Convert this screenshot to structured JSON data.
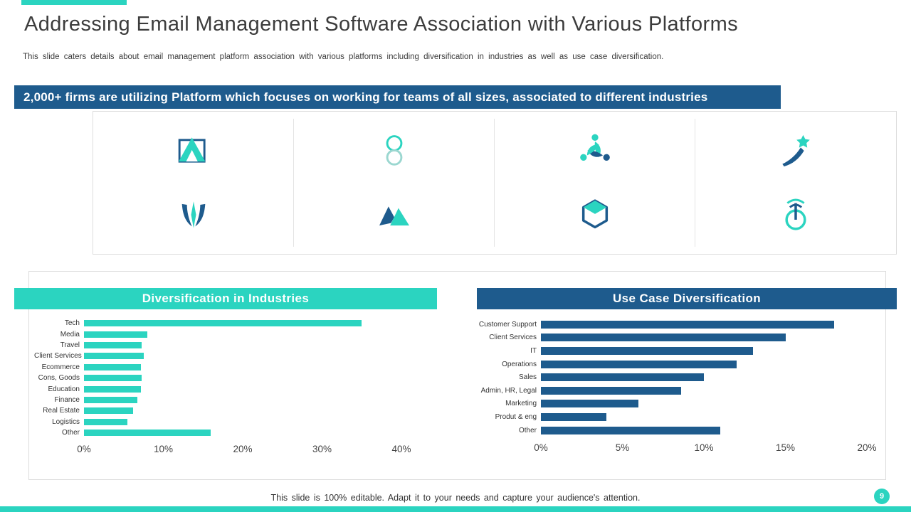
{
  "colors": {
    "teal": "#2BD4C0",
    "blue": "#1E5B8D"
  },
  "header": {
    "title": "Addressing Email Management Software Association with Various Platforms",
    "subtitle": "This slide caters details about email management platform association with various platforms including diversification in industries as well as use case diversification."
  },
  "banner": {
    "text": "2,000+ firms are utilizing Platform which focuses on working for teams of all sizes, associated to different industries"
  },
  "logos": [
    "triangle-square-logo",
    "figure-eight-logo",
    "people-swirl-logo",
    "star-person-logo",
    "wing-flame-logo",
    "mountain-m-logo",
    "hexagon-box-logo",
    "antenna-power-logo"
  ],
  "chart_data": [
    {
      "type": "bar",
      "orientation": "horizontal",
      "title": "Diversification in Industries",
      "categories": [
        "Tech",
        "Media",
        "Travel",
        "Client Services",
        "Ecommerce",
        "Cons, Goods",
        "Education",
        "Finance",
        "Real Estate",
        "Logistics",
        "Other"
      ],
      "values": [
        35,
        8,
        7.3,
        7.5,
        7.2,
        7.3,
        7.2,
        6.7,
        6.2,
        5.5,
        16
      ],
      "xlabel": "",
      "ylabel": "",
      "xlim": [
        0,
        40
      ],
      "ticks": [
        "0%",
        "10%",
        "20%",
        "30%",
        "40%"
      ],
      "bar_color": "#2BD4C0",
      "grid": false,
      "legend": "none"
    },
    {
      "type": "bar",
      "orientation": "horizontal",
      "title": "Use Case Diversification",
      "categories": [
        "Customer Support",
        "Client Services",
        "IT",
        "Operations",
        "Sales",
        "Admin, HR, Legal",
        "Marketing",
        "Produt & eng",
        "Other"
      ],
      "values": [
        18,
        15,
        13,
        12,
        10,
        8.6,
        6,
        4,
        11
      ],
      "xlabel": "",
      "ylabel": "",
      "xlim": [
        0,
        20
      ],
      "ticks": [
        "0%",
        "5%",
        "10%",
        "15%",
        "20%"
      ],
      "bar_color": "#1E5B8D",
      "grid": false,
      "legend": "none"
    }
  ],
  "footer": {
    "note": "This slide is 100% editable. Adapt it to your needs and capture your audience's attention.",
    "page_number": "9"
  }
}
